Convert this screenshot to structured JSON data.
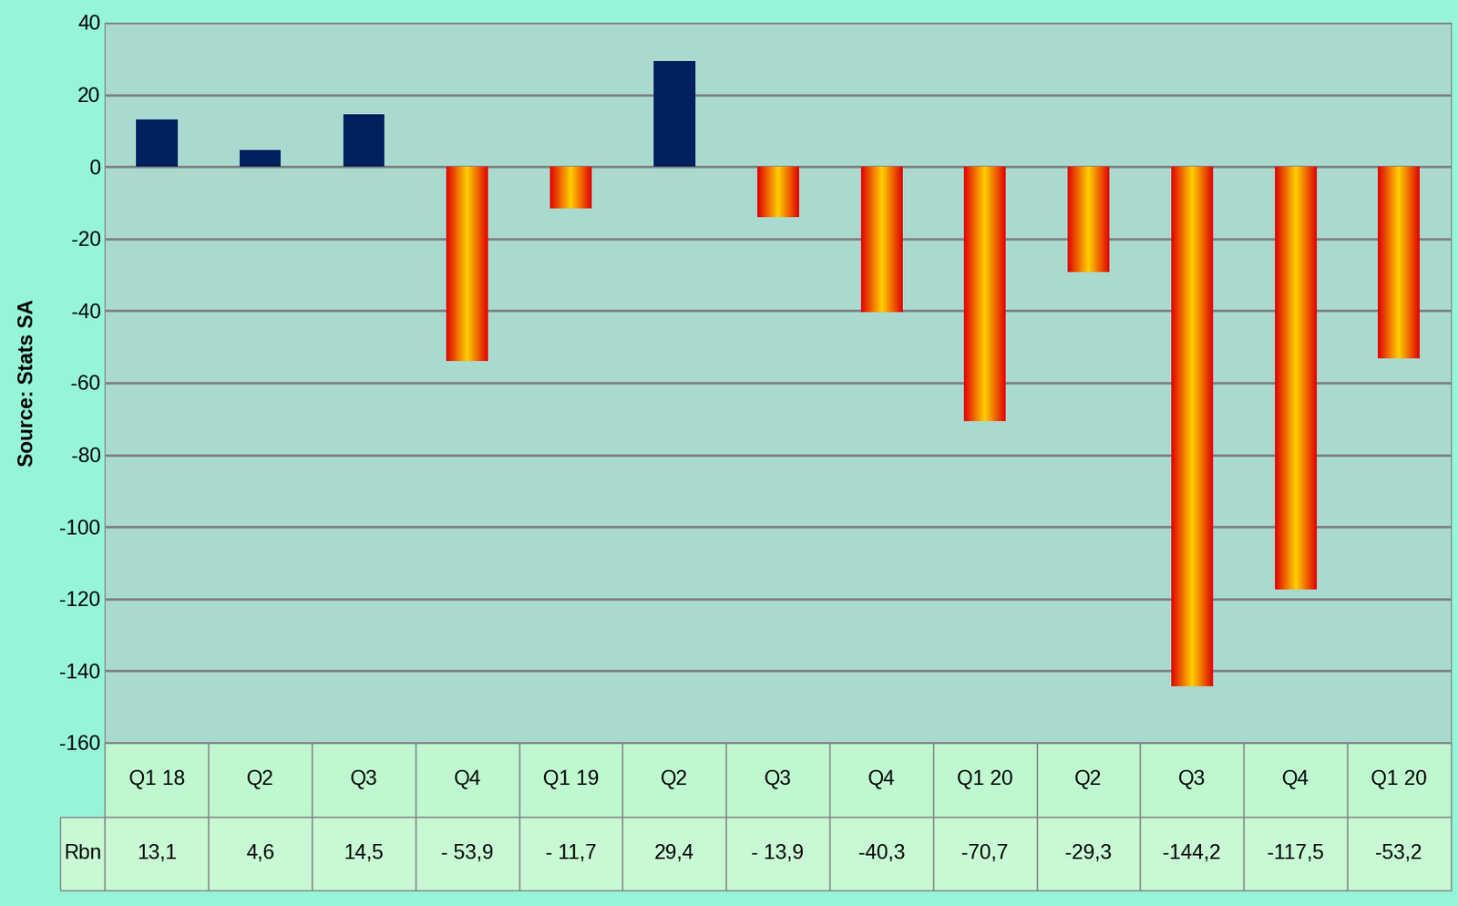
{
  "chart_data": {
    "type": "bar",
    "y_label": "Source: Stats SA",
    "categories": [
      "Q1 18",
      "Q2",
      "Q3",
      "Q4",
      "Q1 19",
      "Q2",
      "Q3",
      "Q4",
      "Q1 20",
      "Q2",
      "Q3",
      "Q4",
      "Q1 20"
    ],
    "series": [
      {
        "name": "Rbn",
        "values": [
          13.1,
          4.6,
          14.5,
          -53.9,
          -11.7,
          29.4,
          -13.9,
          -40.3,
          -70.7,
          -29.3,
          -144.2,
          -117.5,
          -53.2
        ],
        "value_labels": [
          "13,1",
          "4,6",
          "14,5",
          "- 53,9",
          "- 11,7",
          "29,4",
          "- 13,9",
          "-40,3",
          "-70,7",
          "-29,3",
          "-144,2",
          "-117,5",
          "-53,2"
        ],
        "colors": [
          "#002060",
          "#002060",
          "#002060",
          "#ffd000",
          "#ffd000",
          "#002060",
          "#ffd000",
          "#ffd000",
          "#ffd000",
          "#ffd000",
          "#ffd000",
          "#ffd000",
          "#ffd000"
        ]
      }
    ],
    "ylim": [
      -160,
      40
    ],
    "yticks": [
      -160,
      -140,
      -120,
      -100,
      -80,
      -60,
      -40,
      -20,
      0,
      20,
      40
    ],
    "grid": true
  }
}
